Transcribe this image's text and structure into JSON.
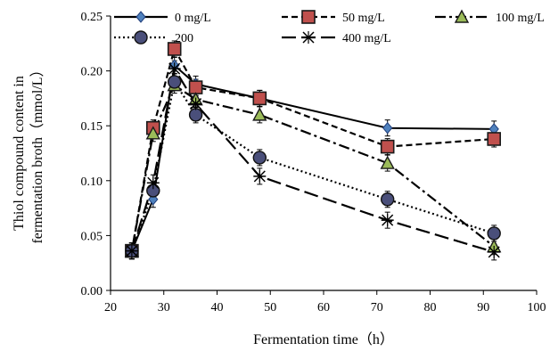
{
  "chart_data": {
    "type": "line",
    "title": "",
    "xlabel": "Fermentation time（h）",
    "ylabel_lines": [
      "Thiol compound content in",
      "fermentation broth（mmol/L）"
    ],
    "xlim": [
      20,
      100
    ],
    "ylim": [
      0,
      0.25
    ],
    "x_ticks": [
      "20",
      "30",
      "40",
      "50",
      "60",
      "70",
      "80",
      "90",
      "100"
    ],
    "y_ticks": [
      "0.00",
      "0.05",
      "0.10",
      "0.15",
      "0.20",
      "0.25"
    ],
    "x": [
      24,
      28,
      32,
      36,
      48,
      72,
      92
    ],
    "grid": false,
    "legend": "top",
    "series": [
      {
        "name": "0 mg/L",
        "marker": "diamond",
        "dash": "solid",
        "fill": "#4f81bd",
        "stroke": "#1f3d7a",
        "values": [
          0.036,
          0.083,
          0.205,
          0.188,
          0.175,
          0.148,
          0.147
        ]
      },
      {
        "name": "50  mg/L",
        "marker": "square",
        "dash": "dash",
        "fill": "#c0504d",
        "stroke": "#1a1a1a",
        "values": [
          0.036,
          0.148,
          0.22,
          0.185,
          0.175,
          0.131,
          0.138
        ]
      },
      {
        "name": "100  mg/L",
        "marker": "triangle",
        "dash": "dashdot",
        "fill": "#9bbb59",
        "stroke": "#1a1a1a",
        "values": [
          0.036,
          0.143,
          0.187,
          0.174,
          0.16,
          0.116,
          0.04
        ]
      },
      {
        "name": "200",
        "marker": "circle",
        "dash": "dot",
        "fill": "#4a4f7a",
        "stroke": "#111111",
        "values": [
          0.036,
          0.091,
          0.19,
          0.16,
          0.121,
          0.083,
          0.052
        ]
      },
      {
        "name": "400  mg/L",
        "marker": "asterisk",
        "dash": "longdash",
        "fill": "#000000",
        "stroke": "#000000",
        "values": [
          0.036,
          0.098,
          0.202,
          0.17,
          0.104,
          0.064,
          0.035
        ]
      }
    ]
  }
}
